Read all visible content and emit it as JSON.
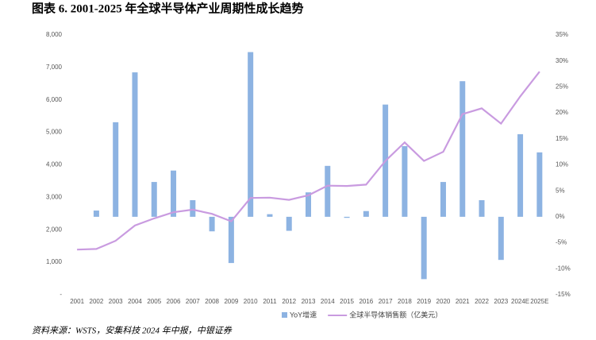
{
  "chart_data": {
    "type": "bar-line",
    "title": "图表 6. 2001-2025 年全球半导体产业周期性成长趋势",
    "source": "资料来源：WSTS，安集科技 2024 年中报，中银证券",
    "categories": [
      "2001",
      "2002",
      "2003",
      "2004",
      "2005",
      "2006",
      "2007",
      "2008",
      "2009",
      "2010",
      "2011",
      "2012",
      "2013",
      "2014",
      "2015",
      "2016",
      "2017",
      "2018",
      "2019",
      "2020",
      "2021",
      "2022",
      "2023",
      "2024E",
      "2025E"
    ],
    "series": [
      {
        "name": "YoY增速",
        "type": "bar",
        "axis": "y2",
        "color": "#8db3e2",
        "values": [
          null,
          1.2,
          18.2,
          27.8,
          6.7,
          8.9,
          3.2,
          -2.8,
          -8.9,
          31.7,
          0.5,
          -2.7,
          4.7,
          9.8,
          -0.2,
          1.1,
          21.6,
          13.6,
          -12.0,
          6.7,
          26.1,
          3.2,
          -8.3,
          15.9,
          12.4
        ]
      },
      {
        "name": "全球半导体销售额（亿美元）",
        "type": "line",
        "axis": "y",
        "color": "#c99be0",
        "values": [
          1390,
          1410,
          1660,
          2130,
          2350,
          2540,
          2620,
          2490,
          2260,
          2980,
          2990,
          2920,
          3060,
          3360,
          3350,
          3390,
          4120,
          4690,
          4120,
          4400,
          5560,
          5740,
          5270,
          6110,
          6870
        ]
      }
    ],
    "ylim": [
      0,
      8000
    ],
    "yticks": [
      {
        "value": 0,
        "label": "-"
      },
      {
        "value": 1000,
        "label": "1,000"
      },
      {
        "value": 2000,
        "label": "2,000"
      },
      {
        "value": 3000,
        "label": "3,000"
      },
      {
        "value": 4000,
        "label": "4,000"
      },
      {
        "value": 5000,
        "label": "5,000"
      },
      {
        "value": 6000,
        "label": "6,000"
      },
      {
        "value": 7000,
        "label": "7,000"
      },
      {
        "value": 8000,
        "label": "8,000"
      }
    ],
    "y2lim": [
      -15,
      35
    ],
    "y2ticks": [
      {
        "value": -15,
        "label": "-15%"
      },
      {
        "value": -10,
        "label": "-10%"
      },
      {
        "value": -5,
        "label": "-5%"
      },
      {
        "value": 0,
        "label": "0%"
      },
      {
        "value": 5,
        "label": "5%"
      },
      {
        "value": 10,
        "label": "10%"
      },
      {
        "value": 15,
        "label": "15%"
      },
      {
        "value": 20,
        "label": "20%"
      },
      {
        "value": 25,
        "label": "25%"
      },
      {
        "value": 30,
        "label": "30%"
      },
      {
        "value": 35,
        "label": "35%"
      }
    ]
  }
}
